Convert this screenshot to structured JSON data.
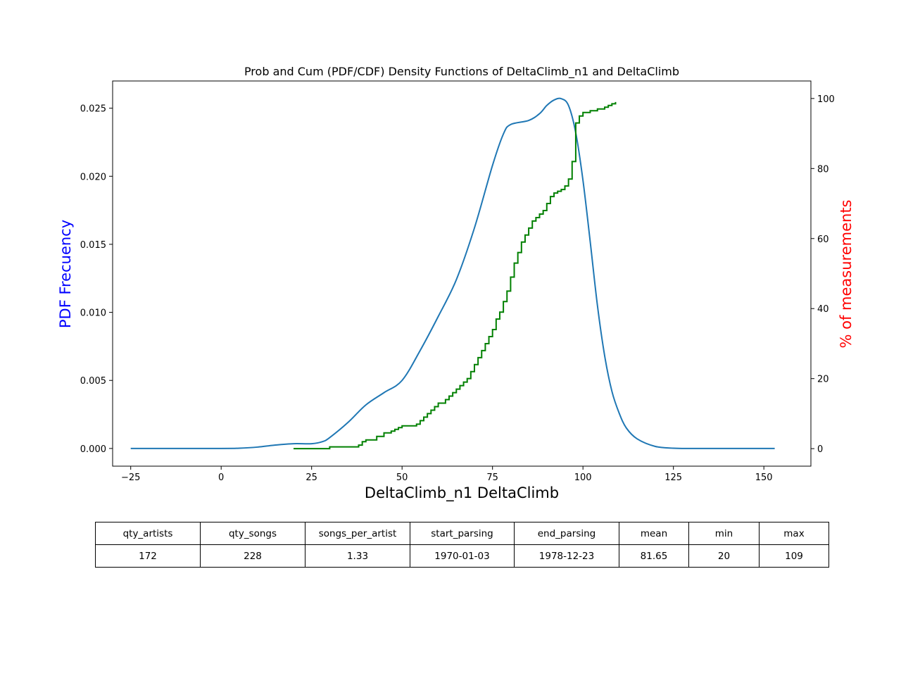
{
  "chart_data": {
    "type": "line",
    "title": "Prob and Cum (PDF/CDF) Density Functions of DeltaClimb_n1 and DeltaClimb",
    "xlabel": "DeltaClimb_n1 DeltaClimb",
    "ylabel": "PDF Frecuency",
    "ylabel_right": "% of measurements",
    "xlim": [
      -30,
      163
    ],
    "ylim": [
      -0.0013,
      0.027
    ],
    "ylim_right": [
      -5,
      105
    ],
    "x_ticks": [
      -25,
      0,
      25,
      50,
      75,
      100,
      125,
      150
    ],
    "x_tick_labels": [
      "−25",
      "0",
      "25",
      "50",
      "75",
      "100",
      "125",
      "150"
    ],
    "y_ticks": [
      0.0,
      0.005,
      0.01,
      0.015,
      0.02,
      0.025
    ],
    "y_tick_labels": [
      "0.000",
      "0.005",
      "0.010",
      "0.015",
      "0.020",
      "0.025"
    ],
    "y_right_ticks": [
      0,
      20,
      40,
      60,
      80,
      100
    ],
    "y_right_tick_labels": [
      "0",
      "20",
      "40",
      "60",
      "80",
      "100"
    ],
    "grid": false,
    "colors": {
      "pdf": "#1f77b4",
      "cdf": "#008000",
      "ylabel_left": "#0000ff",
      "ylabel_right": "#ff0000"
    },
    "series": [
      {
        "type": "line",
        "axis": "left",
        "x": [
          -25,
          0,
          5,
          10,
          15,
          20,
          25,
          28,
          30,
          35,
          40,
          45,
          50,
          55,
          60,
          65,
          70,
          75,
          78,
          80,
          85,
          88,
          90,
          92,
          94,
          96,
          98,
          100,
          102,
          104,
          106,
          108,
          110,
          112,
          115,
          120,
          125,
          130,
          140,
          150,
          153
        ],
        "y": [
          0.0,
          0.0,
          2e-05,
          0.0001,
          0.00025,
          0.00035,
          0.00035,
          0.0005,
          0.0008,
          0.0019,
          0.0032,
          0.0041,
          0.005,
          0.0072,
          0.0097,
          0.0124,
          0.0162,
          0.0208,
          0.0231,
          0.0238,
          0.0241,
          0.0246,
          0.0252,
          0.0256,
          0.0257,
          0.0252,
          0.0232,
          0.0197,
          0.0152,
          0.0105,
          0.0068,
          0.0042,
          0.0026,
          0.0015,
          0.0007,
          0.00015,
          2e-05,
          0.0,
          0.0,
          0.0,
          0.0
        ]
      },
      {
        "type": "step",
        "axis": "right",
        "x": [
          20,
          30,
          38,
          39,
          40,
          43,
          45,
          47,
          48,
          49,
          50,
          54,
          55,
          56,
          57,
          58,
          59,
          60,
          62,
          63,
          64,
          65,
          66,
          67,
          68,
          69,
          70,
          71,
          72,
          73,
          74,
          75,
          76,
          77,
          78,
          79,
          80,
          81,
          82,
          83,
          84,
          85,
          86,
          87,
          88,
          89,
          90,
          91,
          92,
          93,
          94,
          95,
          96,
          97,
          98,
          99,
          100,
          102,
          104,
          106,
          107,
          108,
          109
        ],
        "y": [
          0,
          0.5,
          1.0,
          2.0,
          2.5,
          3.5,
          4.5,
          5.0,
          5.5,
          6.0,
          6.5,
          7.0,
          8.0,
          9.0,
          10.0,
          11.0,
          12.0,
          13.0,
          14.0,
          15.0,
          16.0,
          17.0,
          18.0,
          19.0,
          20.0,
          22.0,
          24.0,
          26.0,
          28.0,
          30.0,
          32.0,
          34.0,
          37.0,
          39.0,
          42.0,
          45.0,
          49.0,
          53.0,
          56.0,
          59.0,
          61.0,
          63.0,
          65.0,
          66.0,
          67.0,
          68.0,
          70.0,
          72.0,
          73.0,
          73.5,
          74.0,
          75.0,
          77.0,
          82.0,
          93.0,
          95.0,
          96.0,
          96.5,
          97.0,
          97.5,
          98.0,
          98.5,
          99.0
        ]
      }
    ]
  },
  "table": {
    "headers": [
      "qty_artists",
      "qty_songs",
      "songs_per_artist",
      "start_parsing",
      "end_parsing",
      "mean",
      "min",
      "max"
    ],
    "rows": [
      [
        "172",
        "228",
        "1.33",
        "1970-01-03",
        "1978-12-23",
        "81.65",
        "20",
        "109"
      ]
    ]
  }
}
